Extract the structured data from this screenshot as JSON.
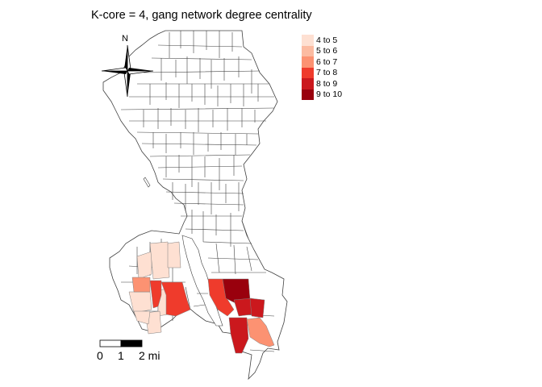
{
  "title": "K-core = 4, gang network degree centrality",
  "legend": {
    "items": [
      {
        "label": "4 to 5",
        "color": "#fee0d2"
      },
      {
        "label": "5 to 6",
        "color": "#fcbba1"
      },
      {
        "label": "6 to 7",
        "color": "#fc9272"
      },
      {
        "label": "7 to 8",
        "color": "#ef3b2c"
      },
      {
        "label": "8 to 9",
        "color": "#cb181d"
      },
      {
        "label": "9 to 10",
        "color": "#99000d"
      }
    ]
  },
  "north_arrow": {
    "label": "N"
  },
  "scale_bar": {
    "labels": [
      "0",
      "1",
      "2 mi"
    ]
  },
  "map": {
    "boundary_color": "#404040",
    "background_fill": "#ffffff"
  }
}
